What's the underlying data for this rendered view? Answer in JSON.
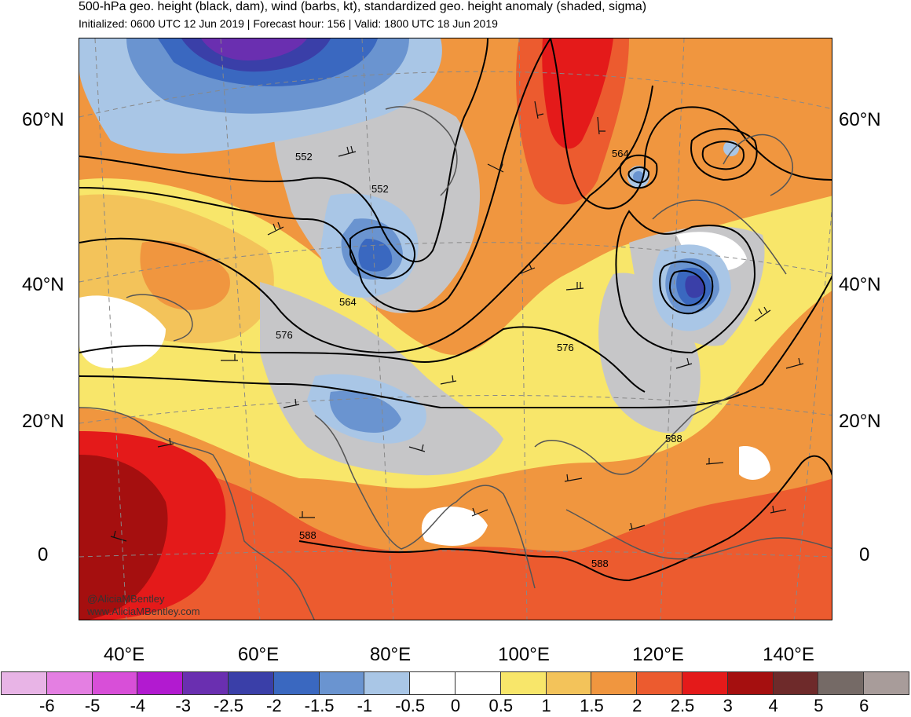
{
  "header": {
    "title": "500-hPa geo. height (black, dam), wind (barbs, kt), standardized geo. height anomaly (shaded, sigma)",
    "subtitle": "Initialized: 0600 UTC 12 Jun 2019 | Forecast hour: 156 | Valid: 1800 UTC 18 Jun 2019"
  },
  "map": {
    "lat_labels_left": [
      "60°N",
      "40°N",
      "20°N",
      "0"
    ],
    "lat_labels_right": [
      "60°N",
      "40°N",
      "20°N",
      "0"
    ],
    "lon_labels": [
      "40°E",
      "60°E",
      "80°E",
      "100°E",
      "120°E",
      "140°E"
    ],
    "contour_labels": [
      "552",
      "552",
      "564",
      "564",
      "576",
      "576",
      "588",
      "588",
      "588"
    ],
    "credit_handle": "@AliciaMBentley",
    "credit_url": "www.AliciaMBentley.com"
  },
  "colorbar": {
    "labels": [
      "-6",
      "-5",
      "-4",
      "-3",
      "-2.5",
      "-2",
      "-1.5",
      "-1",
      "-0.5",
      "0",
      "0.5",
      "1",
      "1.5",
      "2",
      "2.5",
      "3",
      "4",
      "5",
      "6"
    ],
    "colors": [
      "#e8b4e6",
      "#e47fe2",
      "#d84fd8",
      "#b21ad0",
      "#6a2fb0",
      "#3a3fa8",
      "#3a68c0",
      "#6a94d0",
      "#a9c6e6",
      "#ffffff",
      "#ffffff",
      "#f8e66a",
      "#f3c35a",
      "#f0963f",
      "#ec5b2f",
      "#e41a1a",
      "#a50f0f",
      "#6e2a2a",
      "#756a66",
      "#a89c9a"
    ]
  },
  "anomaly_colors": {
    "gray": "#c6c6c8",
    "white": "#ffffff",
    "light_blue": "#a9c6e6",
    "mid_blue": "#6a94d0",
    "blue": "#3a68c0",
    "dark_blue": "#3a3fa8",
    "purple": "#6a2fb0",
    "yellow": "#f8e66a",
    "light_orange": "#f3c35a",
    "orange": "#f0963f",
    "red_orange": "#ec5b2f",
    "red": "#e41a1a",
    "dark_red": "#a50f0f"
  }
}
